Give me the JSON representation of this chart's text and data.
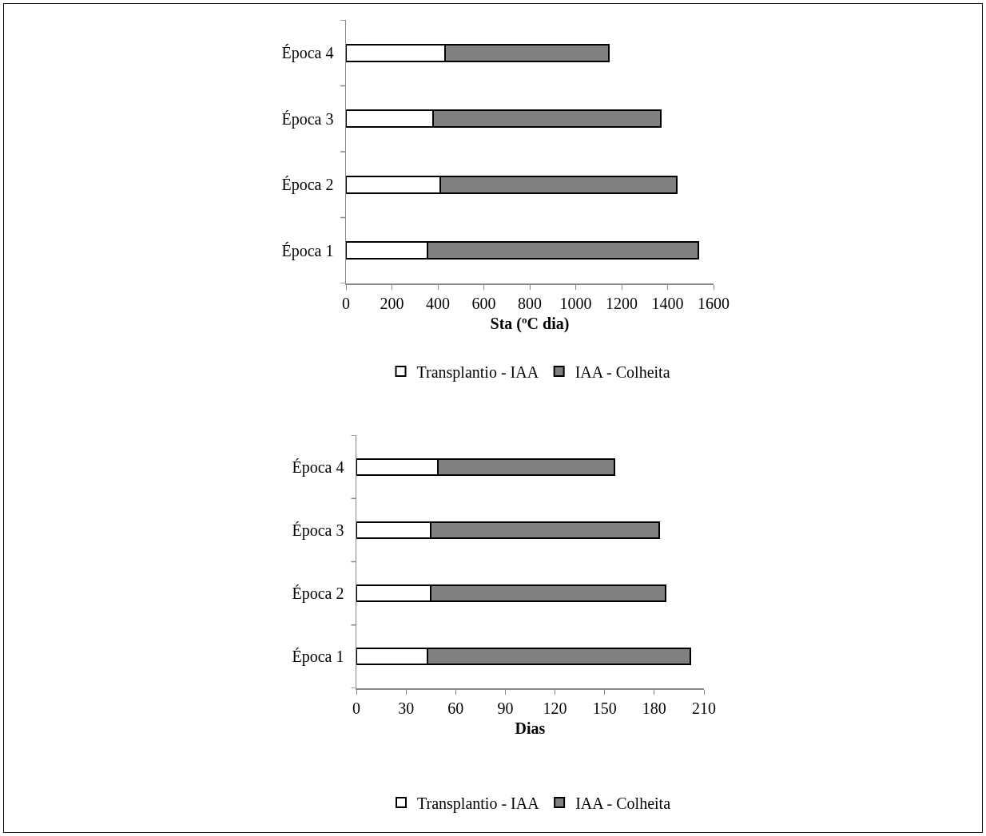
{
  "chart_data": [
    {
      "type": "bar",
      "orientation": "horizontal",
      "stacked": true,
      "categories": [
        "Época 4",
        "Época 3",
        "Época 2",
        "Época 1"
      ],
      "xlabel": "Sta (ºC dia)",
      "xlim": [
        0,
        1600
      ],
      "xticks": [
        0,
        200,
        400,
        600,
        800,
        1000,
        1200,
        1400,
        1600
      ],
      "grid": false,
      "legend": "bottom",
      "series": [
        {
          "name": "Transplantio - IAA",
          "color": "#ffffff",
          "values": [
            430,
            380,
            410,
            355
          ]
        },
        {
          "name": "IAA - Colheita",
          "color": "#808080",
          "values": [
            715,
            990,
            1030,
            1180
          ]
        }
      ]
    },
    {
      "type": "bar",
      "orientation": "horizontal",
      "stacked": true,
      "categories": [
        "Época 4",
        "Época 3",
        "Época 2",
        "Época 1"
      ],
      "xlabel": "Dias",
      "xlim": [
        0,
        210
      ],
      "xticks": [
        0,
        30,
        60,
        90,
        120,
        150,
        180,
        210
      ],
      "grid": false,
      "legend": "bottom",
      "series": [
        {
          "name": "Transplantio - IAA",
          "color": "#ffffff",
          "values": [
            49,
            45,
            45,
            43
          ]
        },
        {
          "name": "IAA - Colheita",
          "color": "#808080",
          "values": [
            107,
            138,
            142,
            159
          ]
        }
      ]
    }
  ]
}
